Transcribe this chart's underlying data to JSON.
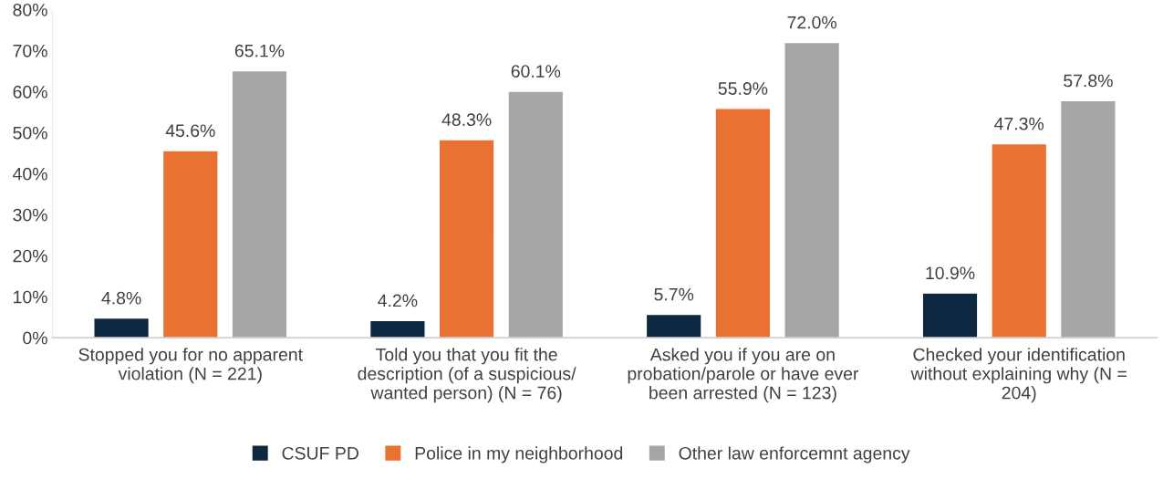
{
  "chart_data": {
    "type": "bar",
    "categories": [
      "Stopped you for no apparent\nviolation (N = 221)",
      "Told you that you fit the\ndescription (of a suspicious/\nwanted person) (N = 76)",
      "Asked you if you are on\nprobation/parole or have ever\nbeen arrested (N = 123)",
      "Checked your identification\nwithout explaining why (N =\n204)"
    ],
    "series": [
      {
        "name": "CSUF PD",
        "color": "#0e2841",
        "values": [
          4.8,
          4.2,
          5.7,
          10.9
        ],
        "value_labels": [
          "4.8%",
          "4.2%",
          "5.7%",
          "10.9%"
        ]
      },
      {
        "name": "Police in my neighborhood",
        "color": "#e97132",
        "values": [
          45.6,
          48.3,
          55.9,
          47.3
        ],
        "value_labels": [
          "45.6%",
          "48.3%",
          "55.9%",
          "47.3%"
        ]
      },
      {
        "name": "Other law enforcemnt agency",
        "color": "#a6a6a6",
        "values": [
          65.1,
          60.1,
          72.0,
          57.8
        ],
        "value_labels": [
          "65.1%",
          "60.1%",
          "72.0%",
          "57.8%"
        ]
      }
    ],
    "ylim": [
      0,
      80
    ],
    "yticks": [
      {
        "value": 0,
        "label": "0%"
      },
      {
        "value": 10,
        "label": "10%"
      },
      {
        "value": 20,
        "label": "20%"
      },
      {
        "value": 30,
        "label": "30%"
      },
      {
        "value": 40,
        "label": "40%"
      },
      {
        "value": 50,
        "label": "50%"
      },
      {
        "value": 60,
        "label": "60%"
      },
      {
        "value": 70,
        "label": "70%"
      },
      {
        "value": 80,
        "label": "80%"
      }
    ],
    "grid": false,
    "legend": "bottom"
  }
}
